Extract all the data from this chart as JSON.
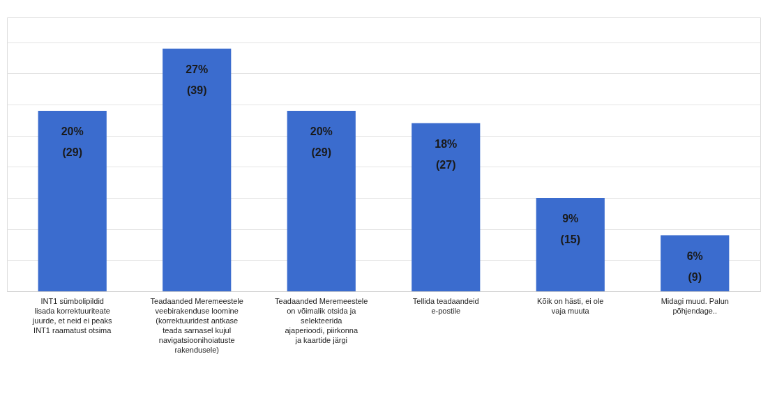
{
  "chart_data": {
    "type": "bar",
    "categories": [
      "INT1 sümbolipildid lisada korrektuuriteate juurde, et neid ei peaks INT1 raamatust otsima",
      "Teadaanded Meremeestele veebirakenduse loomine (korrektuuridest antkase teada sarnasel kujul navigatsioonihoiatuste rakendusele)",
      "Teadaanded Meremeestele on võimalik otsida ja selekteerida ajaperioodi, piirkonna ja kaartide järgi",
      "Tellida teadaandeid e-postile",
      "Kõik on hästi, ei ole vaja muuta",
      "Midagi muud. Palun põhjendage.."
    ],
    "values": [
      29,
      39,
      29,
      27,
      15,
      9
    ],
    "value_labels": [
      "20%\n(29)",
      "27%\n(39)",
      "20%\n(29)",
      "18%\n(27)",
      "9%\n(15)",
      "6%\n(9)"
    ],
    "color": "#3b6cce",
    "ylim": [
      0,
      44
    ],
    "grid": "y",
    "tick_labels": "x"
  }
}
